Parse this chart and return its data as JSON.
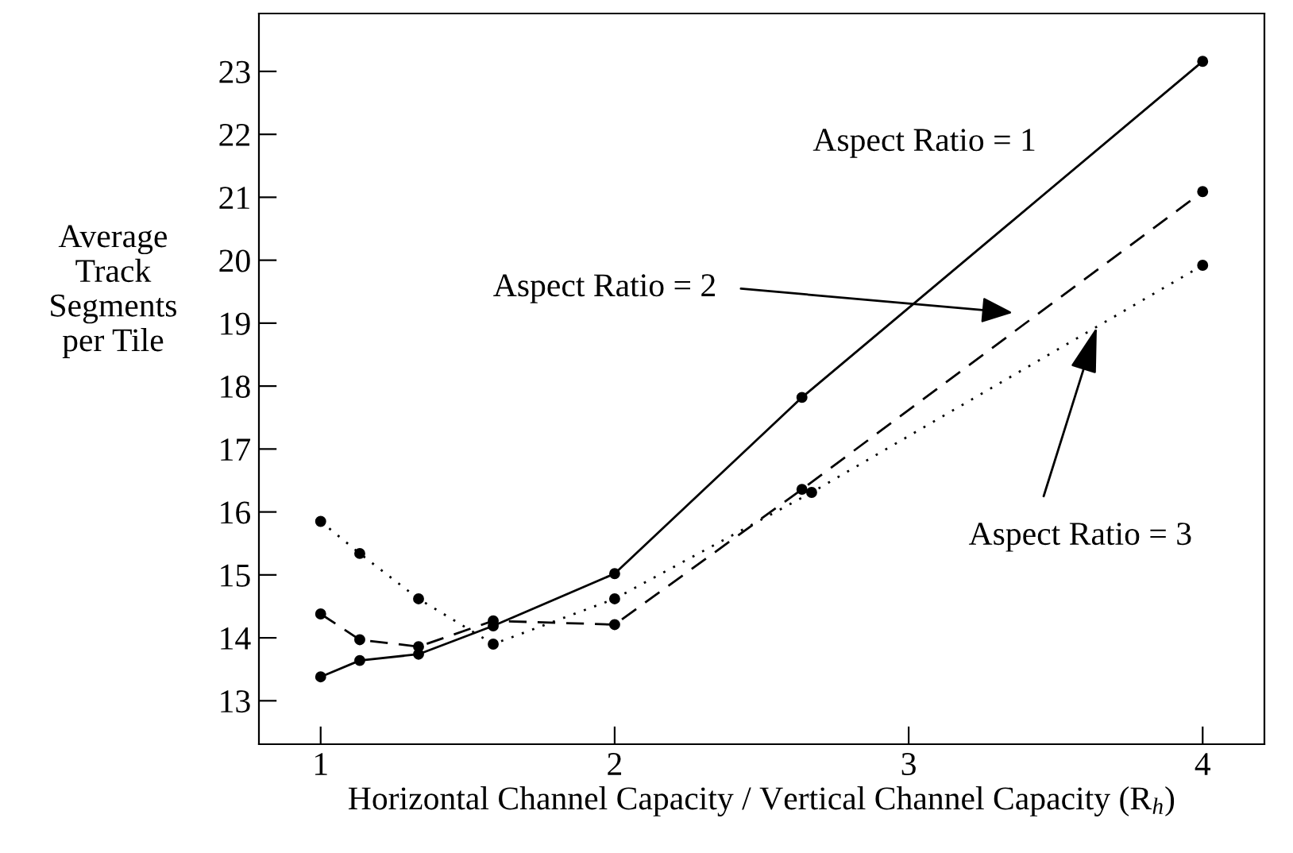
{
  "chart_data": {
    "type": "line",
    "xlabel": "Horizontal Channel Capacity / Vertical Channel Capacity (R$_{h}$)",
    "ylabel": "Average\nTrack\nSegments\nper Tile",
    "xlim": [
      0.79,
      4.21
    ],
    "xticks": [
      1,
      2,
      3,
      4
    ],
    "ylim": [
      12.31,
      23.92
    ],
    "yticks": [
      13,
      14,
      15,
      16,
      17,
      18,
      19,
      20,
      21,
      22,
      23
    ],
    "grid": false,
    "legend": false,
    "marker": "circle",
    "series": [
      {
        "color": "#000000",
        "line_style": "solid",
        "x": [
          1,
          1.133,
          1.333,
          1.587,
          2,
          2.637,
          4
        ],
        "values": [
          13.38,
          13.64,
          13.74,
          14.19,
          15.02,
          17.82,
          23.16
        ]
      },
      {
        "color": "#000000",
        "line_style": "dashed",
        "x": [
          1,
          1.133,
          1.333,
          1.587,
          2,
          2.637,
          4
        ],
        "values": [
          14.38,
          13.97,
          13.86,
          14.27,
          14.21,
          16.36,
          21.09
        ]
      },
      {
        "color": "#000000",
        "line_style": "dotted",
        "x": [
          1,
          1.133,
          1.333,
          1.587,
          2,
          2.67,
          4
        ],
        "values": [
          15.85,
          15.34,
          14.62,
          13.9,
          14.62,
          16.31,
          19.92
        ]
      }
    ],
    "annotations": [
      "Aspect Ratio = 1",
      "Aspect Ratio = 2",
      {
        "text": "Aspect Ratio = 3",
        "x": 3.64,
        "y": 18.94
      }
    ]
  }
}
